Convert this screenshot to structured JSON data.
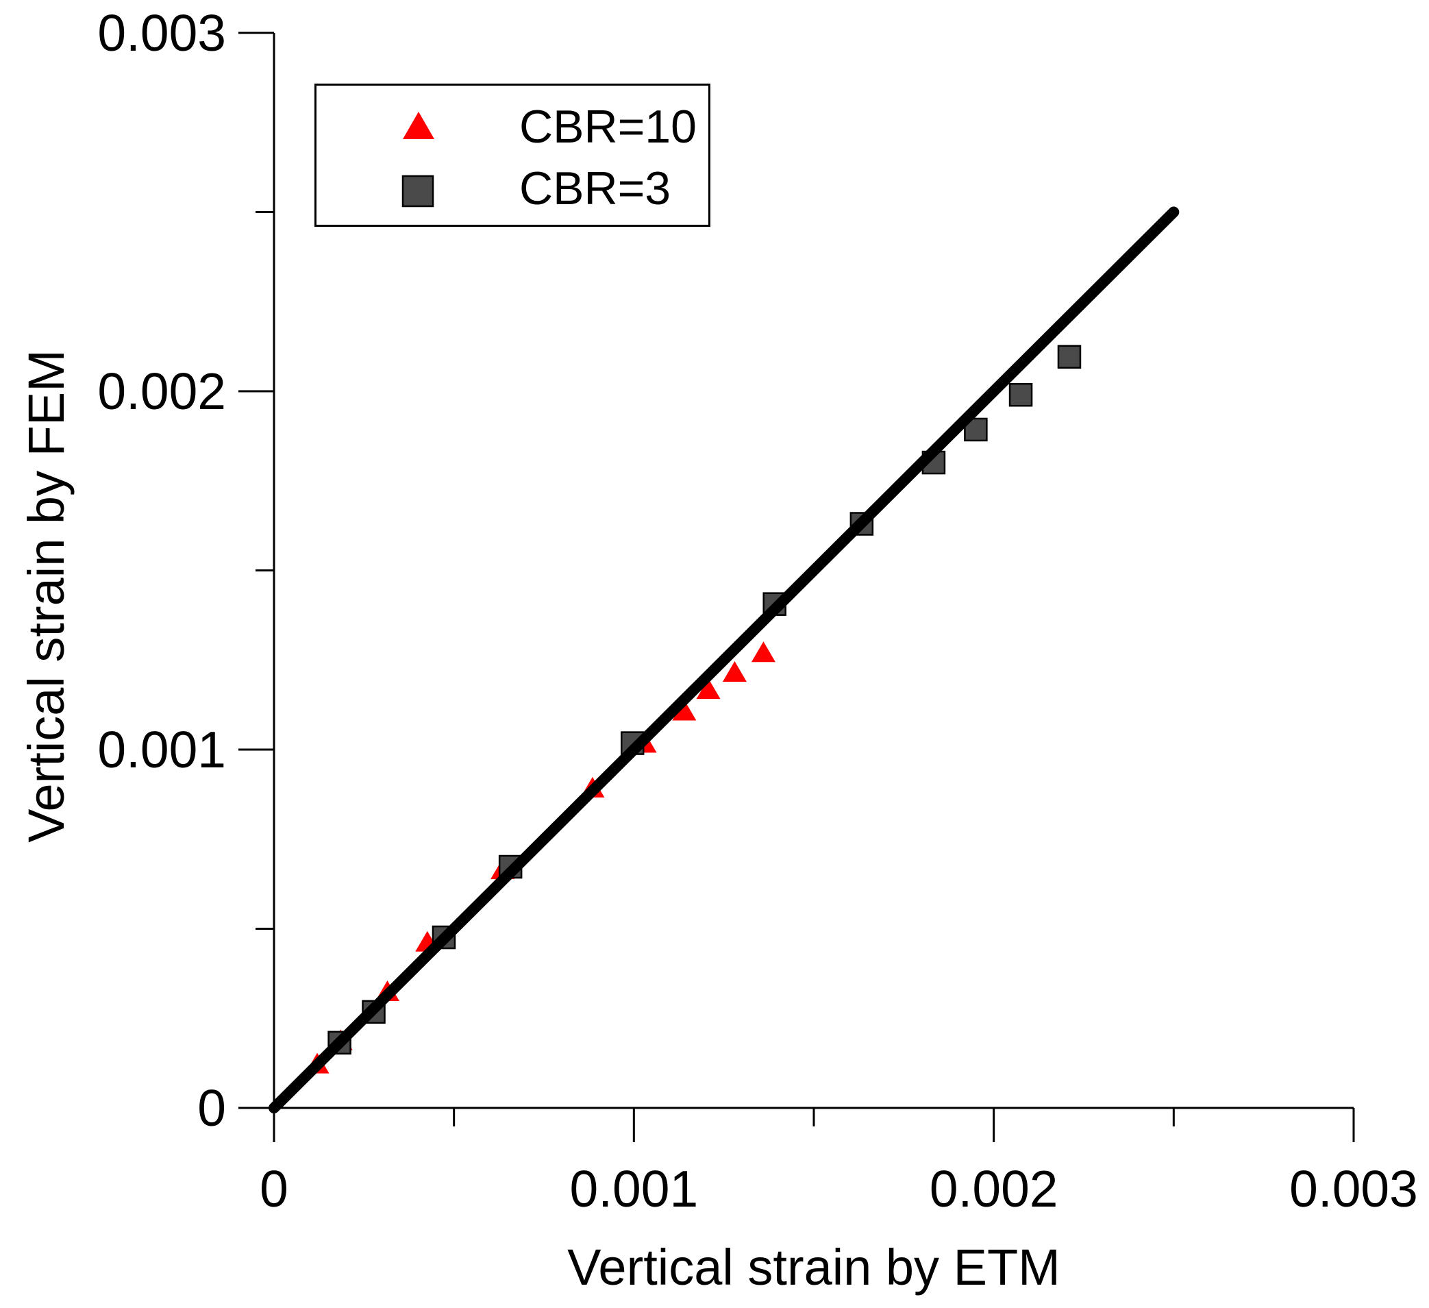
{
  "figure": {
    "background": "#ffffff",
    "text_color": "#000000"
  },
  "chart_data": {
    "type": "scatter",
    "title": "",
    "xlabel": "Vertical strain by ETM",
    "ylabel": "Vertical strain by FEM",
    "xlim": [
      0,
      0.003
    ],
    "ylim": [
      0,
      0.003
    ],
    "grid": false,
    "legend_position": "upper-left",
    "x_ticks": {
      "values": [
        0,
        0.001,
        0.002,
        0.003
      ],
      "labels": [
        "0",
        "0.001",
        "0.002",
        "0.003"
      ],
      "minor_values": [
        0.0005,
        0.0015,
        0.0025
      ]
    },
    "y_ticks": {
      "values": [
        0,
        0.001,
        0.002,
        0.003
      ],
      "labels": [
        "0",
        "0.001",
        "0.002",
        "0.003"
      ],
      "minor_values": [
        0.0005,
        0.0015,
        0.0025
      ]
    },
    "series": [
      {
        "name": "CBR=10",
        "marker": "triangle",
        "color": "#ff0000",
        "points": [
          [
            0.00012,
            0.000125
          ],
          [
            0.000185,
            0.00019
          ],
          [
            0.000315,
            0.000327
          ],
          [
            0.000426,
            0.000465
          ],
          [
            0.000635,
            0.000667
          ],
          [
            0.000885,
            0.000895
          ],
          [
            0.00103,
            0.00102
          ],
          [
            0.00114,
            0.00111
          ],
          [
            0.001207,
            0.00117
          ],
          [
            0.00128,
            0.001218
          ],
          [
            0.00136,
            0.001273
          ]
        ]
      },
      {
        "name": "CBR=3",
        "marker": "square",
        "color": "#4a4a4a",
        "stroke": "#000000",
        "points": [
          [
            0.000182,
            0.000182
          ],
          [
            0.000277,
            0.000268
          ],
          [
            0.000472,
            0.000476
          ],
          [
            0.000657,
            0.000673
          ],
          [
            0.000996,
            0.001018
          ],
          [
            0.001391,
            0.001406
          ],
          [
            0.001633,
            0.00163
          ],
          [
            0.001833,
            0.001801
          ],
          [
            0.00195,
            0.001893
          ],
          [
            0.002075,
            0.00199
          ],
          [
            0.00221,
            0.002096
          ]
        ]
      }
    ],
    "reference_line": {
      "from": [
        0,
        0
      ],
      "to": [
        0.0025,
        0.0025
      ],
      "color": "#000000"
    },
    "axis_color": "#000000"
  }
}
